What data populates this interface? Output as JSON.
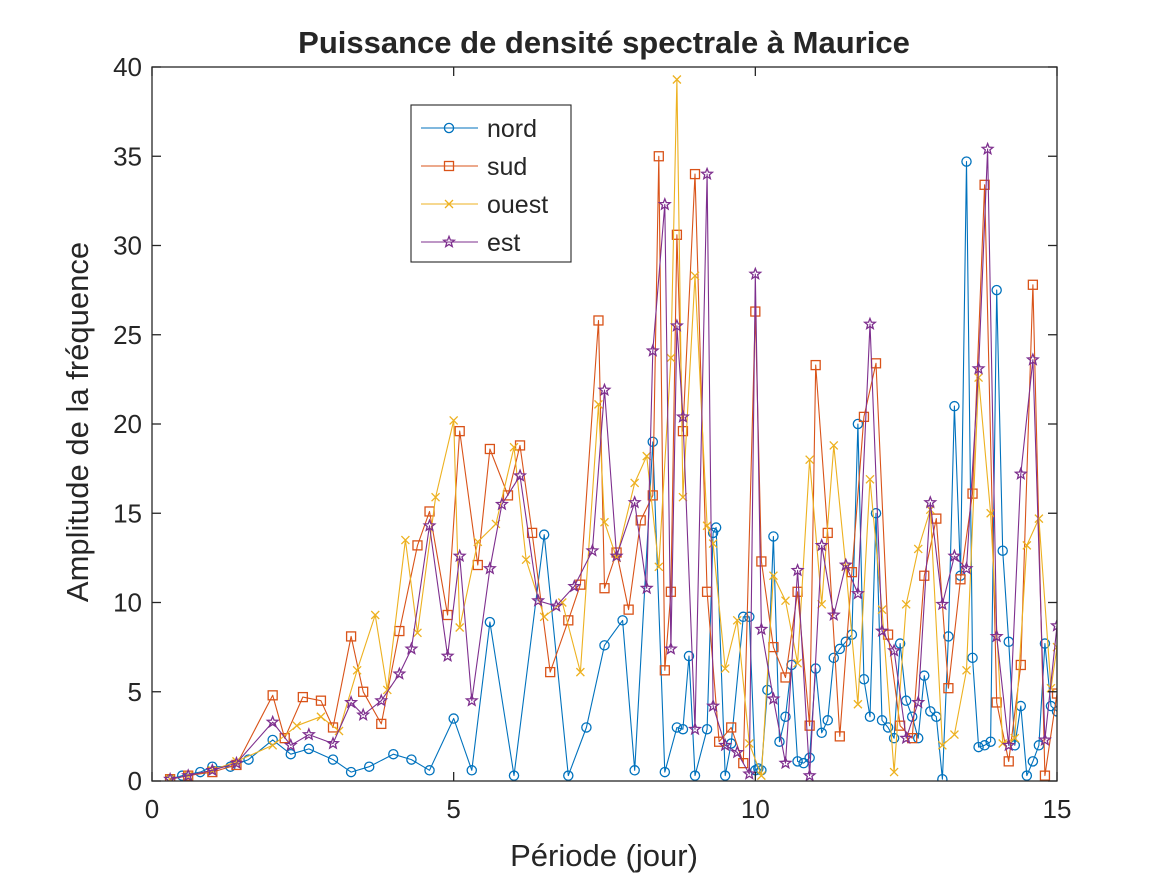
{
  "chart_data": {
    "type": "line",
    "title": "Puissance de densité spectrale à Maurice",
    "xlabel": "Période (jour)",
    "ylabel": "Amplitude de la fréquence",
    "xlim": [
      0,
      15
    ],
    "ylim": [
      0,
      40
    ],
    "xticks": [
      0,
      5,
      10,
      15
    ],
    "yticks": [
      0,
      5,
      10,
      15,
      20,
      25,
      30,
      35,
      40
    ],
    "xtick_labels": [
      "0",
      "5",
      "10",
      "15"
    ],
    "ytick_labels": [
      "0",
      "5",
      "10",
      "15",
      "20",
      "25",
      "30",
      "35",
      "40"
    ],
    "grid": false,
    "legend_position": "top-left-inside",
    "series": [
      {
        "name": "nord",
        "color": "#0072BD",
        "marker": "circle",
        "x": [
          0.3,
          0.5,
          0.8,
          1.0,
          1.3,
          1.6,
          2.0,
          2.3,
          2.6,
          3.0,
          3.3,
          3.6,
          4.0,
          4.3,
          4.6,
          5.0,
          5.3,
          5.6,
          6.0,
          6.5,
          6.9,
          7.2,
          7.5,
          7.8,
          8.0,
          8.3,
          8.5,
          8.7,
          8.8,
          8.9,
          9.0,
          9.2,
          9.3,
          9.35,
          9.5,
          9.6,
          9.8,
          9.9,
          10.0,
          10.05,
          10.1,
          10.2,
          10.3,
          10.4,
          10.5,
          10.6,
          10.7,
          10.8,
          10.9,
          11.0,
          11.1,
          11.2,
          11.3,
          11.4,
          11.5,
          11.6,
          11.7,
          11.8,
          11.9,
          12.0,
          12.1,
          12.2,
          12.3,
          12.4,
          12.5,
          12.6,
          12.7,
          12.8,
          12.9,
          13.0,
          13.1,
          13.2,
          13.3,
          13.4,
          13.5,
          13.6,
          13.7,
          13.8,
          13.9,
          14.0,
          14.1,
          14.2,
          14.3,
          14.4,
          14.5,
          14.6,
          14.7,
          14.8,
          14.9,
          15.0
        ],
        "y": [
          0.1,
          0.3,
          0.5,
          0.8,
          0.8,
          1.2,
          2.3,
          1.5,
          1.8,
          1.2,
          0.5,
          0.8,
          1.5,
          1.2,
          0.6,
          3.5,
          0.6,
          8.9,
          0.3,
          13.8,
          0.3,
          3.0,
          7.6,
          9.0,
          0.6,
          19.0,
          0.5,
          3.0,
          2.9,
          7.0,
          0.3,
          2.9,
          13.9,
          14.2,
          0.3,
          2.1,
          9.2,
          9.2,
          0.6,
          0.7,
          0.6,
          5.1,
          13.7,
          2.2,
          3.6,
          6.5,
          1.1,
          1.0,
          1.3,
          6.3,
          2.7,
          3.4,
          6.9,
          7.4,
          7.8,
          8.2,
          20.0,
          5.7,
          3.6,
          15.0,
          3.4,
          3.0,
          2.4,
          7.7,
          4.5,
          3.6,
          2.4,
          5.9,
          3.9,
          3.6,
          0.1,
          8.1,
          21.0,
          11.5,
          34.7,
          6.9,
          1.9,
          2.0,
          2.2,
          27.5,
          12.9,
          7.8,
          2.0,
          4.2,
          0.3,
          1.1,
          2.0,
          7.7,
          4.2,
          3.9
        ],
        "marker_ticks_y": [
          0,
          5,
          10,
          15
        ]
      },
      {
        "name": "sud",
        "color": "#D95319",
        "marker": "square",
        "x": [
          0.3,
          0.6,
          1.0,
          1.4,
          2.0,
          2.2,
          2.5,
          2.8,
          3.0,
          3.3,
          3.5,
          3.8,
          4.1,
          4.4,
          4.6,
          4.9,
          5.1,
          5.4,
          5.6,
          5.9,
          6.1,
          6.3,
          6.6,
          6.9,
          7.1,
          7.4,
          7.5,
          7.7,
          7.9,
          8.1,
          8.3,
          8.4,
          8.5,
          8.6,
          8.7,
          8.8,
          9.0,
          9.2,
          9.4,
          9.6,
          9.8,
          10.0,
          10.1,
          10.3,
          10.5,
          10.7,
          10.9,
          11.0,
          11.2,
          11.4,
          11.6,
          11.8,
          12.0,
          12.2,
          12.4,
          12.6,
          12.8,
          13.0,
          13.2,
          13.4,
          13.6,
          13.8,
          14.0,
          14.2,
          14.4,
          14.6,
          14.8,
          15.0
        ],
        "y": [
          0.1,
          0.3,
          0.5,
          0.9,
          4.8,
          2.4,
          4.7,
          4.5,
          3.0,
          8.1,
          5.0,
          3.2,
          8.4,
          13.2,
          15.1,
          9.3,
          19.6,
          12.1,
          18.6,
          16.0,
          18.8,
          13.9,
          6.1,
          9.0,
          11.0,
          25.8,
          10.8,
          12.8,
          9.6,
          14.6,
          16.0,
          35.0,
          6.2,
          10.6,
          30.6,
          19.6,
          34.0,
          10.6,
          2.2,
          3.0,
          1.0,
          26.3,
          12.3,
          7.5,
          5.8,
          10.6,
          3.1,
          23.3,
          13.9,
          2.5,
          11.7,
          20.4,
          23.4,
          8.2,
          3.1,
          2.4,
          11.5,
          14.7,
          5.2,
          11.3,
          16.1,
          33.4,
          4.4,
          1.1,
          6.5,
          27.8,
          0.3,
          4.9
        ]
      },
      {
        "name": "ouest",
        "color": "#EDB120",
        "marker": "x",
        "x": [
          0.3,
          0.6,
          1.0,
          1.4,
          2.0,
          2.4,
          2.8,
          3.1,
          3.4,
          3.7,
          3.9,
          4.2,
          4.4,
          4.7,
          5.0,
          5.1,
          5.4,
          5.7,
          6.0,
          6.2,
          6.5,
          6.8,
          7.1,
          7.4,
          7.5,
          7.7,
          8.0,
          8.2,
          8.4,
          8.6,
          8.7,
          8.8,
          9.0,
          9.2,
          9.3,
          9.5,
          9.7,
          9.9,
          10.1,
          10.3,
          10.5,
          10.7,
          10.9,
          11.1,
          11.3,
          11.5,
          11.7,
          11.9,
          12.1,
          12.3,
          12.5,
          12.7,
          12.9,
          13.1,
          13.3,
          13.5,
          13.7,
          13.9,
          14.1,
          14.3,
          14.5,
          14.7,
          14.9,
          15.0
        ],
        "y": [
          0.1,
          0.3,
          0.6,
          1.1,
          2.0,
          3.1,
          3.6,
          2.8,
          6.2,
          9.3,
          5.1,
          13.5,
          8.3,
          15.9,
          20.2,
          8.6,
          13.4,
          14.4,
          18.7,
          12.4,
          9.2,
          10.0,
          6.1,
          21.1,
          14.5,
          12.5,
          16.7,
          18.2,
          12.0,
          23.7,
          39.3,
          15.9,
          28.3,
          14.3,
          13.3,
          6.3,
          9.0,
          2.1,
          0.3,
          11.5,
          10.1,
          6.6,
          18.0,
          9.9,
          18.8,
          12.0,
          4.3,
          16.9,
          9.6,
          0.5,
          9.9,
          13.0,
          15.2,
          2.0,
          2.6,
          6.2,
          22.6,
          15.0,
          2.1,
          2.4,
          13.2,
          14.7,
          5.2,
          7.5
        ]
      },
      {
        "name": "est",
        "color": "#7E2F8E",
        "marker": "star",
        "x": [
          0.3,
          0.6,
          1.0,
          1.4,
          2.0,
          2.3,
          2.6,
          3.0,
          3.3,
          3.5,
          3.8,
          4.1,
          4.3,
          4.6,
          4.9,
          5.1,
          5.3,
          5.6,
          5.8,
          6.1,
          6.4,
          6.7,
          7.0,
          7.3,
          7.5,
          7.7,
          8.0,
          8.2,
          8.3,
          8.5,
          8.6,
          8.7,
          8.8,
          9.0,
          9.2,
          9.3,
          9.5,
          9.7,
          9.9,
          10.0,
          10.1,
          10.3,
          10.5,
          10.7,
          10.9,
          11.1,
          11.3,
          11.5,
          11.7,
          11.9,
          12.1,
          12.3,
          12.5,
          12.7,
          12.9,
          13.1,
          13.3,
          13.5,
          13.7,
          13.85,
          14.0,
          14.2,
          14.4,
          14.6,
          14.8,
          15.0
        ],
        "y": [
          0.1,
          0.3,
          0.6,
          1.0,
          3.3,
          2.0,
          2.6,
          2.1,
          4.4,
          3.7,
          4.5,
          6.0,
          7.4,
          14.3,
          7.0,
          12.6,
          4.5,
          11.9,
          15.5,
          17.1,
          10.1,
          9.8,
          10.9,
          12.9,
          21.9,
          12.6,
          15.6,
          10.8,
          24.1,
          32.3,
          7.4,
          25.5,
          20.4,
          2.9,
          34.0,
          4.2,
          2.0,
          1.6,
          0.4,
          28.4,
          8.5,
          4.6,
          1.0,
          11.8,
          0.3,
          13.2,
          9.3,
          12.1,
          10.5,
          25.6,
          8.4,
          7.3,
          2.4,
          4.4,
          15.6,
          9.9,
          12.6,
          11.9,
          23.1,
          35.4,
          8.1,
          2.0,
          17.2,
          23.6,
          2.3,
          8.7
        ]
      }
    ]
  }
}
